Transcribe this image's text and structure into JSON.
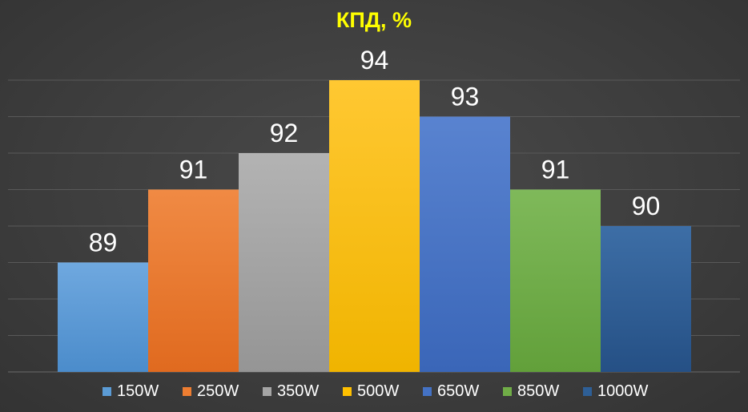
{
  "chart_data": {
    "type": "bar",
    "title": "КПД, %",
    "title_color": "#ffff00",
    "categories": [
      ""
    ],
    "ylim": [
      86,
      94
    ],
    "grid": true,
    "legend_position": "bottom",
    "series": [
      {
        "name": "150W",
        "value": 89,
        "color": "#5b9bd5",
        "color_top": "#6fa8df",
        "color_bottom": "#4b8ccb"
      },
      {
        "name": "250W",
        "value": 91,
        "color": "#ed7d31",
        "color_top": "#f08a44",
        "color_bottom": "#e06a1f"
      },
      {
        "name": "350W",
        "value": 92,
        "color": "#a5a5a5",
        "color_top": "#b3b3b3",
        "color_bottom": "#959595"
      },
      {
        "name": "500W",
        "value": 94,
        "color": "#ffc000",
        "color_top": "#ffc832",
        "color_bottom": "#f0b400"
      },
      {
        "name": "650W",
        "value": 93,
        "color": "#4472c4",
        "color_top": "#5983d0",
        "color_bottom": "#3a66b8"
      },
      {
        "name": "850W",
        "value": 91,
        "color": "#70ad47",
        "color_top": "#7fb95a",
        "color_bottom": "#62a03a"
      },
      {
        "name": "1000W",
        "value": 90,
        "color": "#2e5f96",
        "color_top": "#3d6ea6",
        "color_bottom": "#255085"
      }
    ]
  }
}
